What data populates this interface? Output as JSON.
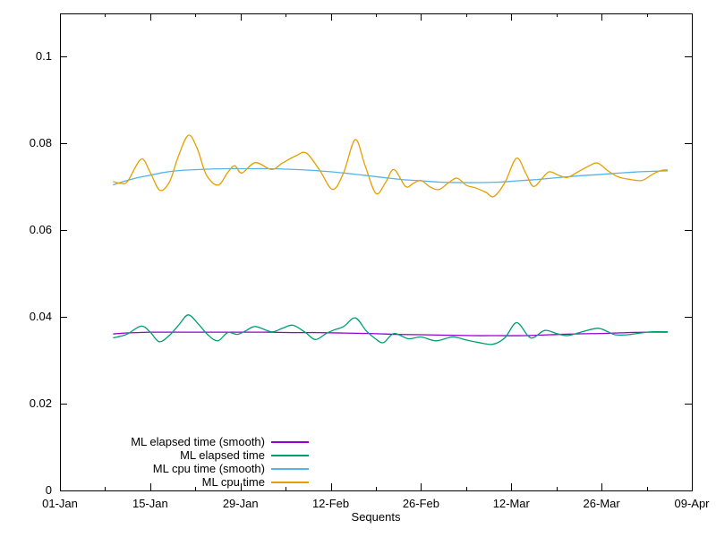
{
  "chart_data": {
    "type": "line",
    "title": "",
    "xlabel": "Sequents",
    "ylabel": "",
    "grid": false,
    "legend_position": "inside-bottom-left",
    "background_color": "#ffffff",
    "border_color": "#000000",
    "text_color": "#000000",
    "x_axis": {
      "unit": "date",
      "range_days": [
        0,
        98
      ],
      "tick_days": [
        0,
        14,
        28,
        42,
        56,
        70,
        84,
        98
      ],
      "tick_labels": [
        "01-Jan",
        "15-Jan",
        "29-Jan",
        "12-Feb",
        "26-Feb",
        "12-Mar",
        "26-Mar",
        "09-Apr"
      ],
      "minor_tick_days": [
        7,
        21,
        35,
        49,
        63,
        77,
        91
      ]
    },
    "y_axis": {
      "range": [
        0,
        0.11
      ],
      "tick_values": [
        0,
        0.02,
        0.04,
        0.06,
        0.08,
        0.1
      ],
      "tick_labels": [
        "0",
        "0.02",
        "0.04",
        "0.06",
        "0.08",
        "0.1"
      ]
    },
    "series": [
      {
        "name": "ML elapsed time (smooth)",
        "color": "#9400d3",
        "style": "smooth",
        "points": [
          [
            8.3,
            0.0361
          ],
          [
            10,
            0.0363
          ],
          [
            12,
            0.0364
          ],
          [
            14,
            0.0365
          ],
          [
            17,
            0.0365
          ],
          [
            20,
            0.0365
          ],
          [
            24,
            0.0365
          ],
          [
            28,
            0.0365
          ],
          [
            32,
            0.0365
          ],
          [
            36,
            0.0364
          ],
          [
            40,
            0.0364
          ],
          [
            44,
            0.0363
          ],
          [
            48,
            0.0362
          ],
          [
            52,
            0.036
          ],
          [
            56,
            0.0359
          ],
          [
            60,
            0.0358
          ],
          [
            64,
            0.0357
          ],
          [
            68,
            0.0357
          ],
          [
            72,
            0.0357
          ],
          [
            76,
            0.0359
          ],
          [
            80,
            0.0361
          ],
          [
            84,
            0.0362
          ],
          [
            88,
            0.0364
          ],
          [
            91,
            0.0365
          ],
          [
            94.2,
            0.0365
          ]
        ]
      },
      {
        "name": "ML elapsed time",
        "color": "#009e73",
        "style": "raw",
        "points": [
          [
            8.3,
            0.0352
          ],
          [
            9.5,
            0.0356
          ],
          [
            10.5,
            0.0361
          ],
          [
            12.6,
            0.0379
          ],
          [
            14,
            0.0365
          ],
          [
            15.4,
            0.0343
          ],
          [
            17,
            0.0358
          ],
          [
            18.5,
            0.0383
          ],
          [
            19.9,
            0.0405
          ],
          [
            21.5,
            0.0383
          ],
          [
            23,
            0.0358
          ],
          [
            24.5,
            0.0345
          ],
          [
            26,
            0.0364
          ],
          [
            27.5,
            0.036
          ],
          [
            28.8,
            0.0368
          ],
          [
            30.3,
            0.0378
          ],
          [
            32.8,
            0.0366
          ],
          [
            34.5,
            0.0374
          ],
          [
            36.1,
            0.0381
          ],
          [
            38,
            0.0365
          ],
          [
            39.6,
            0.0348
          ],
          [
            41.3,
            0.0362
          ],
          [
            42.5,
            0.037
          ],
          [
            44,
            0.0378
          ],
          [
            45.8,
            0.0398
          ],
          [
            47.5,
            0.0368
          ],
          [
            49,
            0.0349
          ],
          [
            50.2,
            0.0341
          ],
          [
            51.8,
            0.0362
          ],
          [
            54,
            0.035
          ],
          [
            56,
            0.0354
          ],
          [
            58.3,
            0.0345
          ],
          [
            60.9,
            0.0354
          ],
          [
            63,
            0.0347
          ],
          [
            65,
            0.0341
          ],
          [
            67.1,
            0.0337
          ],
          [
            69,
            0.0352
          ],
          [
            70.8,
            0.0387
          ],
          [
            72.5,
            0.0358
          ],
          [
            73.4,
            0.0352
          ],
          [
            75.2,
            0.0369
          ],
          [
            77,
            0.0362
          ],
          [
            78.7,
            0.0357
          ],
          [
            81,
            0.0366
          ],
          [
            83.4,
            0.0374
          ],
          [
            85,
            0.0366
          ],
          [
            86.1,
            0.0359
          ],
          [
            88,
            0.0359
          ],
          [
            90,
            0.0363
          ],
          [
            92,
            0.0366
          ],
          [
            94.2,
            0.0366
          ]
        ]
      },
      {
        "name": "ML cpu time (smooth)",
        "color": "#56b4e9",
        "style": "smooth",
        "points": [
          [
            8.3,
            0.0705
          ],
          [
            10,
            0.0713
          ],
          [
            12,
            0.0721
          ],
          [
            14,
            0.0727
          ],
          [
            16,
            0.0733
          ],
          [
            18,
            0.0737
          ],
          [
            20,
            0.0739
          ],
          [
            23,
            0.0741
          ],
          [
            26,
            0.0742
          ],
          [
            29,
            0.0742
          ],
          [
            32,
            0.0742
          ],
          [
            35,
            0.0741
          ],
          [
            38,
            0.0739
          ],
          [
            41,
            0.0736
          ],
          [
            44,
            0.0732
          ],
          [
            47,
            0.0727
          ],
          [
            50,
            0.0722
          ],
          [
            53,
            0.0717
          ],
          [
            56,
            0.0714
          ],
          [
            59,
            0.0711
          ],
          [
            62,
            0.071
          ],
          [
            65,
            0.071
          ],
          [
            68,
            0.0711
          ],
          [
            71,
            0.0714
          ],
          [
            74,
            0.0717
          ],
          [
            77,
            0.0721
          ],
          [
            80,
            0.0725
          ],
          [
            83,
            0.0728
          ],
          [
            86,
            0.0731
          ],
          [
            89,
            0.0734
          ],
          [
            92,
            0.0736
          ],
          [
            94.2,
            0.0737
          ]
        ]
      },
      {
        "name": "ML cpu time",
        "color": "#e69f00",
        "style": "raw",
        "points": [
          [
            8.3,
            0.0712
          ],
          [
            9.5,
            0.0708
          ],
          [
            10.5,
            0.0713
          ],
          [
            12.6,
            0.0764
          ],
          [
            14,
            0.0733
          ],
          [
            15.5,
            0.0692
          ],
          [
            17,
            0.0712
          ],
          [
            18.3,
            0.0768
          ],
          [
            19.9,
            0.0819
          ],
          [
            21.3,
            0.0788
          ],
          [
            22.7,
            0.0728
          ],
          [
            24.5,
            0.0704
          ],
          [
            26,
            0.0733
          ],
          [
            27.1,
            0.0749
          ],
          [
            28.2,
            0.0732
          ],
          [
            30.3,
            0.0756
          ],
          [
            32.8,
            0.074
          ],
          [
            34.5,
            0.0755
          ],
          [
            36.5,
            0.0771
          ],
          [
            38.2,
            0.0778
          ],
          [
            40.3,
            0.0738
          ],
          [
            42.3,
            0.0694
          ],
          [
            44,
            0.0733
          ],
          [
            45.8,
            0.0809
          ],
          [
            47.3,
            0.075
          ],
          [
            49,
            0.0685
          ],
          [
            50.5,
            0.071
          ],
          [
            51.8,
            0.074
          ],
          [
            53.6,
            0.0701
          ],
          [
            54.8,
            0.0708
          ],
          [
            56,
            0.0715
          ],
          [
            57.4,
            0.07
          ],
          [
            58.8,
            0.0694
          ],
          [
            60.3,
            0.071
          ],
          [
            61.6,
            0.072
          ],
          [
            63,
            0.0704
          ],
          [
            64.4,
            0.0698
          ],
          [
            66,
            0.0688
          ],
          [
            67.3,
            0.0678
          ],
          [
            69,
            0.071
          ],
          [
            70.8,
            0.0766
          ],
          [
            72.2,
            0.0733
          ],
          [
            73.4,
            0.0701
          ],
          [
            74.8,
            0.072
          ],
          [
            75.9,
            0.0735
          ],
          [
            77.3,
            0.0727
          ],
          [
            78.7,
            0.0722
          ],
          [
            80.5,
            0.0736
          ],
          [
            82,
            0.0748
          ],
          [
            83.4,
            0.0755
          ],
          [
            85,
            0.0737
          ],
          [
            86.6,
            0.0723
          ],
          [
            88.5,
            0.0717
          ],
          [
            90.3,
            0.0715
          ],
          [
            92,
            0.073
          ],
          [
            93.3,
            0.0738
          ],
          [
            94.2,
            0.0739
          ]
        ]
      }
    ]
  }
}
